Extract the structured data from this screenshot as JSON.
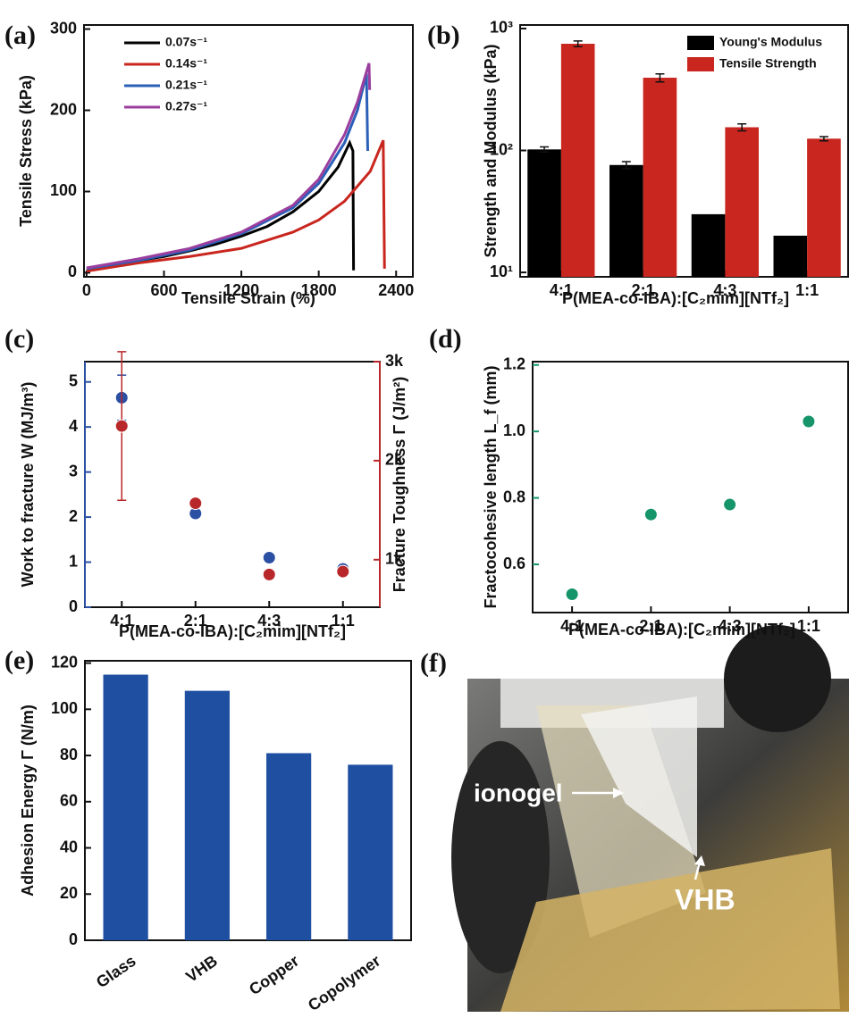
{
  "chart_data": [
    {
      "type": "line",
      "label": "(a)",
      "x_label": "Tensile Strain (%)",
      "y_label": "Tensile Stress (kPa)",
      "xlim": [
        -20,
        2530
      ],
      "xticks": [
        0,
        600,
        1200,
        1800,
        2400
      ],
      "ylim": [
        -5,
        305
      ],
      "yticks": [
        0,
        100,
        200,
        300
      ],
      "legend": "upper left",
      "series": [
        {
          "name": "0.07s⁻¹",
          "color": "#000000",
          "x": [
            0,
            200,
            400,
            600,
            800,
            1000,
            1200,
            1400,
            1600,
            1800,
            1950,
            2040,
            2065,
            2070
          ],
          "values": [
            3,
            10,
            15,
            20,
            27,
            35,
            45,
            57,
            75,
            100,
            130,
            160,
            150,
            3
          ]
        },
        {
          "name": "0.14s⁻¹",
          "color": "#c8261e",
          "x": [
            0,
            400,
            800,
            1200,
            1600,
            1800,
            2000,
            2200,
            2300,
            2310
          ],
          "values": [
            2,
            12,
            20,
            30,
            50,
            65,
            88,
            125,
            163,
            5
          ]
        },
        {
          "name": "0.21s⁻¹",
          "color": "#2b5fb8",
          "x": [
            0,
            400,
            800,
            1200,
            1600,
            1800,
            2000,
            2100,
            2170,
            2180
          ],
          "values": [
            5,
            15,
            28,
            48,
            80,
            110,
            160,
            200,
            245,
            150
          ]
        },
        {
          "name": "0.27s⁻¹",
          "color": "#9b3f9e",
          "x": [
            0,
            400,
            800,
            1200,
            1600,
            1800,
            2000,
            2100,
            2190,
            2195
          ],
          "values": [
            6,
            17,
            30,
            50,
            83,
            115,
            170,
            210,
            258,
            225
          ]
        }
      ]
    },
    {
      "type": "bar",
      "label": "(b)",
      "x_label": "P(MEA-co-IBA):[C₂mim][NTf₂]",
      "y_label": "Strength  and Modulus (kPa)",
      "categories": [
        "4:1",
        "2:1",
        "4:3",
        "1:1"
      ],
      "log_scale": true,
      "ylim": [
        9.2,
        1069
      ],
      "yticks": [
        {
          "value": 10,
          "label": "10¹"
        },
        {
          "value": 100,
          "label": "10²"
        },
        {
          "value": 1000,
          "label": "10³"
        }
      ],
      "legend": "upper right",
      "series": [
        {
          "name": "Young's Modulus",
          "color": "#000000",
          "values": [
            102,
            76,
            30,
            20
          ],
          "errors": [
            5,
            5,
            null,
            null
          ]
        },
        {
          "name": "Tensile Strength",
          "color": "#c8261e",
          "values": [
            750,
            395,
            155,
            125
          ],
          "errors": [
            40,
            30,
            10,
            5
          ]
        }
      ]
    },
    {
      "type": "scatter",
      "label": "(c)",
      "x_label": "P(MEA-co-IBA):[C₂mim][NTf₂]",
      "y_label": "Work to fracture W (MJ/m³)",
      "y2_label": "Fracture Toughness Γ (J/m²)",
      "categories": [
        "4:1",
        "2:1",
        "4:3",
        "1:1"
      ],
      "ylim": [
        0,
        5.45
      ],
      "yticks": [
        0,
        1,
        2,
        3,
        4,
        5
      ],
      "y2lim": [
        520,
        3000
      ],
      "y2ticks": [
        {
          "value": 1000,
          "label": "1k"
        },
        {
          "value": 2000,
          "label": "2k"
        },
        {
          "value": 3000,
          "label": "3k"
        }
      ],
      "series": [
        {
          "color": "#2b4fa3",
          "values": [
            4.65,
            2.08,
            1.1,
            0.85
          ],
          "errors": [
            0.5,
            null,
            null,
            null
          ]
        },
        {
          "color": "#b8272a",
          "axis": "y2",
          "values": [
            2350,
            1570,
            850,
            880
          ],
          "errors": [
            750,
            null,
            null,
            40
          ]
        }
      ]
    },
    {
      "type": "scatter",
      "label": "(d)",
      "x_label": "P(MEA-co-IBA):[C₂mim][NTf₂]",
      "y_label": "Fractocohesive length L_f (mm)",
      "categories": [
        "4:1",
        "2:1",
        "4:3",
        "1:1"
      ],
      "ylim": [
        0.455,
        1.21
      ],
      "yticks": [
        0.6,
        0.8,
        {
          "value": 1,
          "label": "1.0"
        },
        1.2
      ],
      "series": [
        {
          "color": "#16956a",
          "values": [
            0.51,
            0.75,
            0.78,
            1.03
          ]
        }
      ]
    },
    {
      "type": "bar",
      "label": "(e)",
      "y_label": "Adhesion Energy Γ (N/m)",
      "categories": [
        "Glass",
        "VHB",
        "Copper",
        "Copolymer"
      ],
      "ylim": [
        0,
        121
      ],
      "yticks": [
        0,
        20,
        40,
        60,
        80,
        100,
        120
      ],
      "series": [
        {
          "color": "#1f4fa0",
          "values": [
            115,
            108,
            81,
            76
          ]
        }
      ]
    }
  ],
  "photo": {
    "label": "(f)",
    "labels": [
      "ionogel",
      "VHB"
    ]
  }
}
